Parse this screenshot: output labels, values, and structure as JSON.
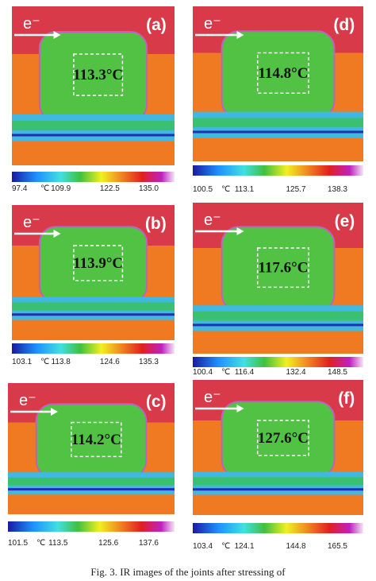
{
  "panels": [
    {
      "label": "(a)",
      "electron": "e⁻",
      "temperature": "113.3°C",
      "unit": "℃",
      "ticks": [
        "97.4",
        "109.9",
        "122.5",
        "135.0"
      ]
    },
    {
      "label": "(b)",
      "electron": "e⁻",
      "temperature": "113.9°C",
      "unit": "℃",
      "ticks": [
        "103.1",
        "113.8",
        "124.6",
        "135.3"
      ]
    },
    {
      "label": "(c)",
      "electron": "e⁻",
      "temperature": "114.2°C",
      "unit": "℃",
      "ticks": [
        "101.5",
        "113.5",
        "125.6",
        "137.6"
      ]
    },
    {
      "label": "(d)",
      "electron": "e⁻",
      "temperature": "114.8°C",
      "unit": "℃",
      "ticks": [
        "100.5",
        "113.1",
        "125.7",
        "138.3"
      ]
    },
    {
      "label": "(e)",
      "electron": "e⁻",
      "temperature": "117.6°C",
      "unit": "℃",
      "ticks": [
        "100.4",
        "116.4",
        "132.4",
        "148.5"
      ]
    },
    {
      "label": "(f)",
      "electron": "e⁻",
      "temperature": "127.6°C",
      "unit": "℃",
      "ticks": [
        "103.4",
        "124.1",
        "144.8",
        "165.5"
      ]
    }
  ],
  "caption": "Fig. 3. IR images of the joints after stressing of"
}
